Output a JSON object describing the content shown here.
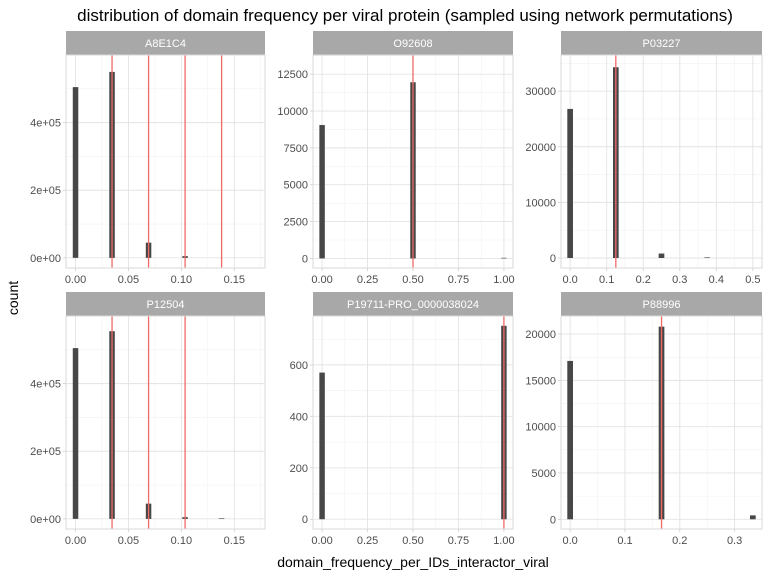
{
  "chart_data": {
    "type": "bar",
    "title": "distribution of domain frequency per viral protein (sampled using network permutations)",
    "xlabel": "domain_frequency_per_IDs_interactor_viral",
    "ylabel": "count",
    "colors": {
      "bar": "#474747",
      "vline": "#f06a6a",
      "strip": "#a8a8a8",
      "grid_major": "#e3e3e3",
      "grid_minor": "#f2f2f2",
      "panel_border": "#d9d9d9"
    },
    "panels": [
      {
        "name": "A8E1C4",
        "xlim": [
          -0.009,
          0.179
        ],
        "ylim": [
          -30000,
          600000
        ],
        "bar_width": 0.0052,
        "xticks": [
          0,
          0.05,
          0.1,
          0.15
        ],
        "xtick_labels": [
          "0.00",
          "0.05",
          "0.10",
          "0.15"
        ],
        "yticks": [
          0,
          200000,
          400000
        ],
        "ytick_labels": [
          "0e+00",
          "2e+05",
          "4e+05"
        ],
        "bars": [
          {
            "x": 0.0,
            "count": 505000
          },
          {
            "x": 0.0345,
            "count": 550000
          },
          {
            "x": 0.069,
            "count": 45000
          },
          {
            "x": 0.1035,
            "count": 5000
          }
        ],
        "vlines": [
          0.0345,
          0.069,
          0.1035,
          0.138
        ]
      },
      {
        "name": "O92608",
        "xlim": [
          -0.05,
          1.05
        ],
        "ylim": [
          -650,
          13800
        ],
        "bar_width": 0.03,
        "xticks": [
          0,
          0.25,
          0.5,
          0.75,
          1.0
        ],
        "xtick_labels": [
          "0.00",
          "0.25",
          "0.50",
          "0.75",
          "1.00"
        ],
        "yticks": [
          0,
          2500,
          5000,
          7500,
          10000,
          12500
        ],
        "ytick_labels": [
          "0",
          "2500",
          "5000",
          "7500",
          "10000",
          "12500"
        ],
        "bars": [
          {
            "x": 0.0,
            "count": 9050
          },
          {
            "x": 0.5,
            "count": 11950
          },
          {
            "x": 1.0,
            "count": 30
          }
        ],
        "vlines": [
          0.5
        ]
      },
      {
        "name": "P03227",
        "xlim": [
          -0.025,
          0.525
        ],
        "ylim": [
          -1800,
          36500
        ],
        "bar_width": 0.0155,
        "xticks": [
          0,
          0.1,
          0.2,
          0.3,
          0.4,
          0.5
        ],
        "xtick_labels": [
          "0.0",
          "0.1",
          "0.2",
          "0.3",
          "0.4",
          "0.5"
        ],
        "yticks": [
          0,
          10000,
          20000,
          30000
        ],
        "ytick_labels": [
          "0",
          "10000",
          "20000",
          "30000"
        ],
        "bars": [
          {
            "x": 0.0,
            "count": 26800
          },
          {
            "x": 0.125,
            "count": 34300
          },
          {
            "x": 0.25,
            "count": 800
          },
          {
            "x": 0.375,
            "count": 40
          }
        ],
        "vlines": [
          0.125
        ]
      },
      {
        "name": "P12504",
        "xlim": [
          -0.009,
          0.179
        ],
        "ylim": [
          -30000,
          600000
        ],
        "bar_width": 0.0052,
        "xticks": [
          0,
          0.05,
          0.1,
          0.15
        ],
        "xtick_labels": [
          "0.00",
          "0.05",
          "0.10",
          "0.15"
        ],
        "yticks": [
          0,
          200000,
          400000
        ],
        "ytick_labels": [
          "0e+00",
          "2e+05",
          "4e+05"
        ],
        "bars": [
          {
            "x": 0.0,
            "count": 505000
          },
          {
            "x": 0.0345,
            "count": 555000
          },
          {
            "x": 0.069,
            "count": 45000
          },
          {
            "x": 0.1035,
            "count": 5000
          },
          {
            "x": 0.138,
            "count": 500
          }
        ],
        "vlines": [
          0.0345,
          0.069,
          0.1035
        ]
      },
      {
        "name": "P19711-PRO_0000038024",
        "xlim": [
          -0.05,
          1.05
        ],
        "ylim": [
          -38,
          790
        ],
        "bar_width": 0.03,
        "xticks": [
          0,
          0.25,
          0.5,
          0.75,
          1.0
        ],
        "xtick_labels": [
          "0.00",
          "0.25",
          "0.50",
          "0.75",
          "1.00"
        ],
        "yticks": [
          0,
          200,
          400,
          600
        ],
        "ytick_labels": [
          "0",
          "200",
          "400",
          "600"
        ],
        "bars": [
          {
            "x": 0.0,
            "count": 570
          },
          {
            "x": 1.0,
            "count": 752
          }
        ],
        "vlines": [
          1.0
        ]
      },
      {
        "name": "P88996",
        "xlim": [
          -0.0167,
          0.35
        ],
        "ylim": [
          -1050,
          21950
        ],
        "bar_width": 0.0104,
        "xticks": [
          0,
          0.1,
          0.2,
          0.3
        ],
        "xtick_labels": [
          "0.0",
          "0.1",
          "0.2",
          "0.3"
        ],
        "yticks": [
          0,
          5000,
          10000,
          15000,
          20000
        ],
        "ytick_labels": [
          "0",
          "5000",
          "10000",
          "15000",
          "20000"
        ],
        "bars": [
          {
            "x": 0.0,
            "count": 17100
          },
          {
            "x": 0.1667,
            "count": 20800
          },
          {
            "x": 0.3333,
            "count": 420
          }
        ],
        "vlines": [
          0.1667
        ]
      }
    ]
  }
}
